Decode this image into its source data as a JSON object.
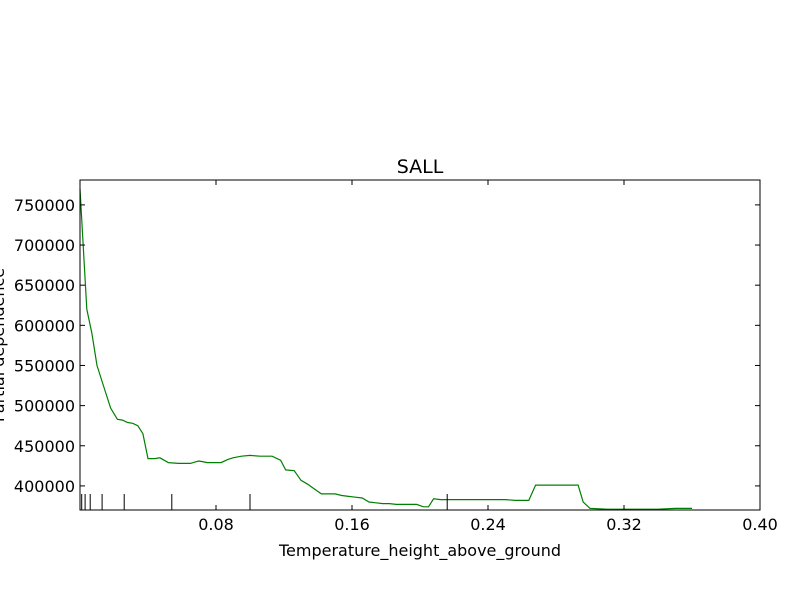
{
  "chart_data": {
    "type": "line",
    "title": "SALL",
    "xlabel": "Temperature_height_above_ground",
    "ylabel": "Partial dependence",
    "xlim": [
      0.0,
      0.4
    ],
    "ylim": [
      370000,
      781000
    ],
    "x_ticks": [
      0.08,
      0.16,
      0.24,
      0.32,
      0.4
    ],
    "x_tick_labels": [
      "0.08",
      "0.16",
      "0.24",
      "0.32",
      "0.40"
    ],
    "y_ticks": [
      400000,
      450000,
      500000,
      550000,
      600000,
      650000,
      700000,
      750000
    ],
    "y_tick_labels": [
      "400000",
      "450000",
      "500000",
      "550000",
      "600000",
      "650000",
      "700000",
      "750000"
    ],
    "grid": false,
    "series": [
      {
        "color": "#008000",
        "x": [
          0.0,
          0.004,
          0.007,
          0.01,
          0.013,
          0.018,
          0.022,
          0.025,
          0.028,
          0.031,
          0.034,
          0.037,
          0.04,
          0.042,
          0.044,
          0.047,
          0.052,
          0.058,
          0.062,
          0.065,
          0.068,
          0.07,
          0.075,
          0.08,
          0.083,
          0.087,
          0.09,
          0.095,
          0.1,
          0.106,
          0.113,
          0.118,
          0.121,
          0.126,
          0.13,
          0.134,
          0.138,
          0.142,
          0.146,
          0.15,
          0.154,
          0.158,
          0.162,
          0.166,
          0.17,
          0.174,
          0.178,
          0.182,
          0.186,
          0.19,
          0.194,
          0.198,
          0.202,
          0.205,
          0.208,
          0.212,
          0.216,
          0.22,
          0.23,
          0.24,
          0.25,
          0.256,
          0.26,
          0.264,
          0.268,
          0.273,
          0.278,
          0.283,
          0.287,
          0.29,
          0.293,
          0.296,
          0.3,
          0.31,
          0.32,
          0.33,
          0.34,
          0.35,
          0.36
        ],
        "y": [
          770000,
          620000,
          590000,
          550000,
          530000,
          497000,
          483000,
          482000,
          479000,
          478000,
          475000,
          465000,
          434000,
          434000,
          434000,
          435000,
          429000,
          428000,
          428000,
          428000,
          430000,
          431000,
          429000,
          429000,
          429000,
          433000,
          435000,
          437000,
          438000,
          437000,
          437000,
          432000,
          420000,
          419000,
          407000,
          402000,
          396000,
          390000,
          390000,
          390000,
          388000,
          387000,
          386000,
          385000,
          380000,
          379000,
          378000,
          378000,
          377000,
          377000,
          377000,
          377000,
          374000,
          374000,
          384000,
          383000,
          383000,
          383000,
          383000,
          383000,
          383000,
          382000,
          382000,
          382000,
          401000,
          401000,
          401000,
          401000,
          401000,
          401000,
          401000,
          380000,
          372000,
          371000,
          371000,
          371000,
          371000,
          372000,
          372000
        ]
      }
    ],
    "rug_x": [
      0.001,
      0.003,
      0.006,
      0.013,
      0.026,
      0.054,
      0.1,
      0.216
    ]
  }
}
